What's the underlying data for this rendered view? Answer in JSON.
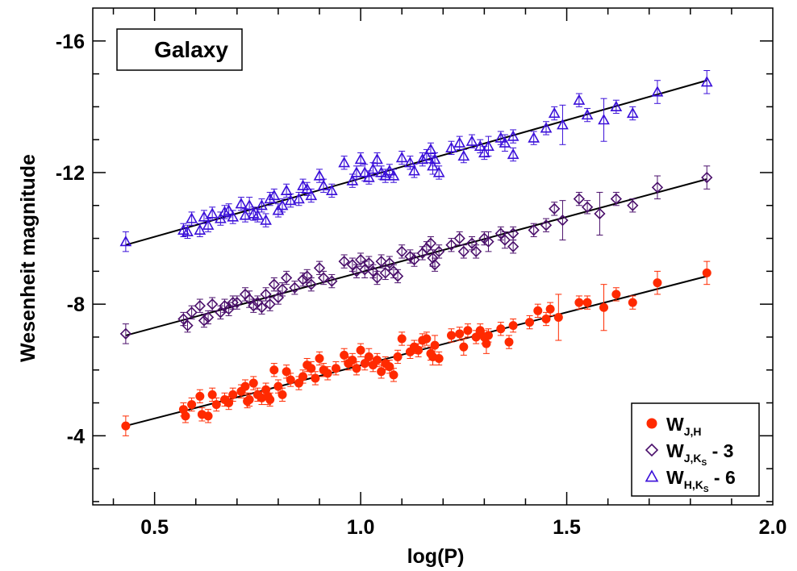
{
  "chart_data": {
    "type": "scatter",
    "title": "",
    "xlabel": "log(P)",
    "ylabel": "Wesenheit magnitude",
    "xlim": [
      0.35,
      2.0
    ],
    "ylim": [
      -1.9,
      -17.0
    ],
    "x_ticks": [
      "0.5",
      "1.0",
      "1.5",
      "2.0"
    ],
    "y_ticks": [
      "-16",
      "-12",
      "-8",
      "-4"
    ],
    "y_reversed": true,
    "grid": false,
    "annotation": "Galaxy",
    "legend": {
      "placement": "bottom-right",
      "entries": [
        {
          "base": "W",
          "sub": "J,H",
          "suffix": ""
        },
        {
          "base": "W",
          "sub": "J,K",
          "subsub": "S",
          "suffix": " - 3"
        },
        {
          "base": "W",
          "sub": "H,K",
          "subsub": "S",
          "suffix": " - 6"
        }
      ]
    },
    "series": [
      {
        "marker": "filled-circle",
        "color": "#ff2a00",
        "fit": {
          "x": [
            0.43,
            1.84
          ],
          "y": [
            -4.3,
            -8.85
          ]
        },
        "points": [
          [
            0.43,
            -4.3,
            0.3
          ],
          [
            0.57,
            -4.8,
            0.2
          ],
          [
            0.575,
            -4.6,
            0.2
          ],
          [
            0.59,
            -4.95,
            0.2
          ],
          [
            0.61,
            -5.2,
            0.2
          ],
          [
            0.615,
            -4.65,
            0.2
          ],
          [
            0.63,
            -4.6,
            0.2
          ],
          [
            0.64,
            -5.25,
            0.2
          ],
          [
            0.65,
            -4.95,
            0.2
          ],
          [
            0.67,
            -5.1,
            0.2
          ],
          [
            0.68,
            -5.0,
            0.2
          ],
          [
            0.69,
            -5.25,
            0.2
          ],
          [
            0.71,
            -5.35,
            0.2
          ],
          [
            0.72,
            -5.5,
            0.2
          ],
          [
            0.725,
            -5.05,
            0.2
          ],
          [
            0.73,
            -5.1,
            0.2
          ],
          [
            0.74,
            -5.6,
            0.2
          ],
          [
            0.75,
            -5.25,
            0.2
          ],
          [
            0.76,
            -5.15,
            0.2
          ],
          [
            0.77,
            -5.4,
            0.2
          ],
          [
            0.775,
            -5.2,
            0.25
          ],
          [
            0.78,
            -5.1,
            0.2
          ],
          [
            0.79,
            -6.0,
            0.2
          ],
          [
            0.8,
            -5.5,
            0.2
          ],
          [
            0.81,
            -5.25,
            0.2
          ],
          [
            0.82,
            -5.95,
            0.2
          ],
          [
            0.83,
            -5.7,
            0.2
          ],
          [
            0.85,
            -5.6,
            0.2
          ],
          [
            0.86,
            -5.8,
            0.2
          ],
          [
            0.87,
            -6.15,
            0.2
          ],
          [
            0.88,
            -6.05,
            0.2
          ],
          [
            0.89,
            -5.75,
            0.2
          ],
          [
            0.9,
            -6.35,
            0.2
          ],
          [
            0.91,
            -6.0,
            0.2
          ],
          [
            0.92,
            -5.9,
            0.2
          ],
          [
            0.94,
            -6.05,
            0.2
          ],
          [
            0.96,
            -6.45,
            0.2
          ],
          [
            0.97,
            -6.2,
            0.2
          ],
          [
            0.98,
            -6.3,
            0.2
          ],
          [
            0.99,
            -6.05,
            0.2
          ],
          [
            1.0,
            -6.6,
            0.2
          ],
          [
            1.01,
            -6.2,
            0.2
          ],
          [
            1.02,
            -6.4,
            0.25
          ],
          [
            1.03,
            -6.15,
            0.2
          ],
          [
            1.04,
            -6.3,
            0.2
          ],
          [
            1.05,
            -5.95,
            0.2
          ],
          [
            1.06,
            -6.2,
            0.2
          ],
          [
            1.07,
            -6.1,
            0.2
          ],
          [
            1.08,
            -5.85,
            0.2
          ],
          [
            1.09,
            -6.4,
            0.2
          ],
          [
            1.1,
            -6.95,
            0.2
          ],
          [
            1.12,
            -6.55,
            0.2
          ],
          [
            1.13,
            -6.7,
            0.2
          ],
          [
            1.14,
            -6.6,
            0.2
          ],
          [
            1.15,
            -6.9,
            0.2
          ],
          [
            1.16,
            -6.95,
            0.2
          ],
          [
            1.17,
            -6.5,
            0.2
          ],
          [
            1.175,
            -6.4,
            0.25
          ],
          [
            1.18,
            -6.75,
            0.3
          ],
          [
            1.19,
            -6.35,
            0.2
          ],
          [
            1.22,
            -7.05,
            0.2
          ],
          [
            1.24,
            -7.1,
            0.2
          ],
          [
            1.25,
            -6.7,
            0.25
          ],
          [
            1.26,
            -7.2,
            0.2
          ],
          [
            1.28,
            -7.0,
            0.2
          ],
          [
            1.29,
            -7.2,
            0.2
          ],
          [
            1.3,
            -7.0,
            0.2
          ],
          [
            1.305,
            -6.8,
            0.3
          ],
          [
            1.31,
            -7.05,
            0.2
          ],
          [
            1.34,
            -7.25,
            0.2
          ],
          [
            1.36,
            -6.85,
            0.2
          ],
          [
            1.37,
            -7.35,
            0.2
          ],
          [
            1.41,
            -7.45,
            0.2
          ],
          [
            1.43,
            -7.8,
            0.2
          ],
          [
            1.45,
            -7.55,
            0.2
          ],
          [
            1.46,
            -7.85,
            0.2
          ],
          [
            1.48,
            -7.6,
            0.7
          ],
          [
            1.53,
            -8.05,
            0.2
          ],
          [
            1.55,
            -8.05,
            0.2
          ],
          [
            1.59,
            -7.9,
            0.7
          ],
          [
            1.62,
            -8.3,
            0.2
          ],
          [
            1.66,
            -8.05,
            0.2
          ],
          [
            1.72,
            -8.65,
            0.35
          ],
          [
            1.84,
            -8.95,
            0.35
          ]
        ]
      },
      {
        "marker": "open-diamond",
        "color": "#4a0f6b",
        "fit": {
          "x": [
            0.43,
            1.84
          ],
          "y": [
            -7.05,
            -11.8
          ]
        },
        "points": [
          [
            0.43,
            -7.1,
            0.3
          ],
          [
            0.57,
            -7.55,
            0.2
          ],
          [
            0.58,
            -7.35,
            0.2
          ],
          [
            0.59,
            -7.75,
            0.2
          ],
          [
            0.61,
            -7.95,
            0.2
          ],
          [
            0.62,
            -7.5,
            0.2
          ],
          [
            0.63,
            -7.6,
            0.2
          ],
          [
            0.64,
            -8.0,
            0.2
          ],
          [
            0.66,
            -7.75,
            0.2
          ],
          [
            0.67,
            -7.95,
            0.2
          ],
          [
            0.68,
            -7.85,
            0.2
          ],
          [
            0.69,
            -8.05,
            0.2
          ],
          [
            0.7,
            -8.05,
            0.2
          ],
          [
            0.72,
            -8.3,
            0.2
          ],
          [
            0.73,
            -8.15,
            0.25
          ],
          [
            0.74,
            -7.95,
            0.2
          ],
          [
            0.75,
            -8.05,
            0.2
          ],
          [
            0.76,
            -7.9,
            0.2
          ],
          [
            0.77,
            -8.3,
            0.2
          ],
          [
            0.78,
            -8.0,
            0.2
          ],
          [
            0.79,
            -8.6,
            0.2
          ],
          [
            0.8,
            -8.2,
            0.2
          ],
          [
            0.81,
            -8.45,
            0.2
          ],
          [
            0.82,
            -8.8,
            0.2
          ],
          [
            0.84,
            -8.5,
            0.2
          ],
          [
            0.86,
            -8.75,
            0.2
          ],
          [
            0.87,
            -8.85,
            0.2
          ],
          [
            0.88,
            -8.6,
            0.2
          ],
          [
            0.9,
            -9.1,
            0.2
          ],
          [
            0.91,
            -8.8,
            0.2
          ],
          [
            0.93,
            -8.7,
            0.2
          ],
          [
            0.96,
            -9.3,
            0.2
          ],
          [
            0.98,
            -9.2,
            0.2
          ],
          [
            0.99,
            -9.0,
            0.2
          ],
          [
            1.0,
            -9.35,
            0.2
          ],
          [
            1.01,
            -9.05,
            0.25
          ],
          [
            1.02,
            -9.25,
            0.2
          ],
          [
            1.03,
            -9.0,
            0.2
          ],
          [
            1.04,
            -8.8,
            0.2
          ],
          [
            1.05,
            -9.3,
            0.2
          ],
          [
            1.06,
            -8.95,
            0.2
          ],
          [
            1.07,
            -9.25,
            0.2
          ],
          [
            1.08,
            -9.0,
            0.2
          ],
          [
            1.09,
            -8.85,
            0.2
          ],
          [
            1.1,
            -9.6,
            0.2
          ],
          [
            1.12,
            -9.45,
            0.2
          ],
          [
            1.13,
            -9.35,
            0.2
          ],
          [
            1.15,
            -9.55,
            0.2
          ],
          [
            1.16,
            -9.7,
            0.2
          ],
          [
            1.17,
            -9.85,
            0.2
          ],
          [
            1.175,
            -9.4,
            0.25
          ],
          [
            1.18,
            -9.2,
            0.2
          ],
          [
            1.19,
            -9.6,
            0.2
          ],
          [
            1.22,
            -9.8,
            0.2
          ],
          [
            1.24,
            -10.0,
            0.2
          ],
          [
            1.25,
            -9.6,
            0.2
          ],
          [
            1.27,
            -9.85,
            0.2
          ],
          [
            1.28,
            -9.6,
            0.2
          ],
          [
            1.3,
            -10.0,
            0.2
          ],
          [
            1.31,
            -9.9,
            0.3
          ],
          [
            1.34,
            -10.15,
            0.2
          ],
          [
            1.35,
            -9.95,
            0.25
          ],
          [
            1.37,
            -9.75,
            0.2
          ],
          [
            1.37,
            -10.15,
            0.2
          ],
          [
            1.42,
            -10.25,
            0.2
          ],
          [
            1.45,
            -10.4,
            0.2
          ],
          [
            1.47,
            -10.9,
            0.2
          ],
          [
            1.49,
            -10.55,
            0.6
          ],
          [
            1.53,
            -11.2,
            0.2
          ],
          [
            1.55,
            -10.95,
            0.2
          ],
          [
            1.58,
            -10.75,
            0.65
          ],
          [
            1.62,
            -11.2,
            0.2
          ],
          [
            1.66,
            -11.0,
            0.2
          ],
          [
            1.72,
            -11.55,
            0.35
          ],
          [
            1.84,
            -11.85,
            0.35
          ]
        ]
      },
      {
        "marker": "open-triangle",
        "color": "#3a0fd9",
        "fit": {
          "x": [
            0.43,
            1.84
          ],
          "y": [
            -9.8,
            -14.8
          ]
        },
        "points": [
          [
            0.43,
            -9.9,
            0.3
          ],
          [
            0.57,
            -10.25,
            0.2
          ],
          [
            0.58,
            -10.2,
            0.2
          ],
          [
            0.59,
            -10.6,
            0.2
          ],
          [
            0.61,
            -10.25,
            0.2
          ],
          [
            0.62,
            -10.65,
            0.2
          ],
          [
            0.63,
            -10.4,
            0.2
          ],
          [
            0.64,
            -10.75,
            0.2
          ],
          [
            0.66,
            -10.6,
            0.2
          ],
          [
            0.67,
            -10.8,
            0.2
          ],
          [
            0.68,
            -10.85,
            0.2
          ],
          [
            0.69,
            -10.65,
            0.2
          ],
          [
            0.71,
            -11.05,
            0.2
          ],
          [
            0.72,
            -10.7,
            0.2
          ],
          [
            0.73,
            -11.0,
            0.25
          ],
          [
            0.74,
            -10.75,
            0.2
          ],
          [
            0.75,
            -10.7,
            0.2
          ],
          [
            0.76,
            -11.0,
            0.2
          ],
          [
            0.77,
            -10.55,
            0.2
          ],
          [
            0.78,
            -11.2,
            0.2
          ],
          [
            0.79,
            -11.3,
            0.2
          ],
          [
            0.8,
            -10.85,
            0.2
          ],
          [
            0.81,
            -11.0,
            0.2
          ],
          [
            0.82,
            -11.45,
            0.2
          ],
          [
            0.83,
            -11.15,
            0.2
          ],
          [
            0.85,
            -11.2,
            0.2
          ],
          [
            0.86,
            -11.6,
            0.2
          ],
          [
            0.87,
            -11.5,
            0.2
          ],
          [
            0.88,
            -11.3,
            0.2
          ],
          [
            0.9,
            -11.9,
            0.2
          ],
          [
            0.91,
            -11.6,
            0.2
          ],
          [
            0.93,
            -11.45,
            0.2
          ],
          [
            0.96,
            -12.3,
            0.2
          ],
          [
            0.98,
            -11.75,
            0.2
          ],
          [
            0.99,
            -12.0,
            0.2
          ],
          [
            1.0,
            -12.4,
            0.2
          ],
          [
            1.01,
            -12.0,
            0.25
          ],
          [
            1.02,
            -11.85,
            0.2
          ],
          [
            1.03,
            -12.1,
            0.2
          ],
          [
            1.04,
            -12.4,
            0.2
          ],
          [
            1.05,
            -12.0,
            0.2
          ],
          [
            1.06,
            -11.9,
            0.2
          ],
          [
            1.07,
            -12.05,
            0.2
          ],
          [
            1.08,
            -11.9,
            0.2
          ],
          [
            1.1,
            -12.45,
            0.2
          ],
          [
            1.12,
            -12.3,
            0.2
          ],
          [
            1.13,
            -12.05,
            0.2
          ],
          [
            1.15,
            -12.4,
            0.2
          ],
          [
            1.16,
            -12.5,
            0.2
          ],
          [
            1.17,
            -12.7,
            0.2
          ],
          [
            1.175,
            -12.2,
            0.25
          ],
          [
            1.18,
            -12.4,
            0.2
          ],
          [
            1.19,
            -12.0,
            0.2
          ],
          [
            1.22,
            -12.75,
            0.2
          ],
          [
            1.24,
            -12.9,
            0.2
          ],
          [
            1.25,
            -12.5,
            0.2
          ],
          [
            1.27,
            -12.95,
            0.2
          ],
          [
            1.29,
            -12.8,
            0.2
          ],
          [
            1.3,
            -12.6,
            0.2
          ],
          [
            1.31,
            -12.8,
            0.3
          ],
          [
            1.34,
            -13.05,
            0.2
          ],
          [
            1.35,
            -12.9,
            0.25
          ],
          [
            1.37,
            -12.55,
            0.2
          ],
          [
            1.37,
            -13.1,
            0.2
          ],
          [
            1.42,
            -13.05,
            0.2
          ],
          [
            1.45,
            -13.35,
            0.2
          ],
          [
            1.47,
            -13.8,
            0.2
          ],
          [
            1.49,
            -13.45,
            0.6
          ],
          [
            1.53,
            -14.2,
            0.2
          ],
          [
            1.55,
            -13.75,
            0.2
          ],
          [
            1.59,
            -13.6,
            0.65
          ],
          [
            1.62,
            -14.0,
            0.2
          ],
          [
            1.66,
            -13.8,
            0.2
          ],
          [
            1.72,
            -14.45,
            0.35
          ],
          [
            1.84,
            -14.75,
            0.35
          ]
        ]
      }
    ]
  }
}
